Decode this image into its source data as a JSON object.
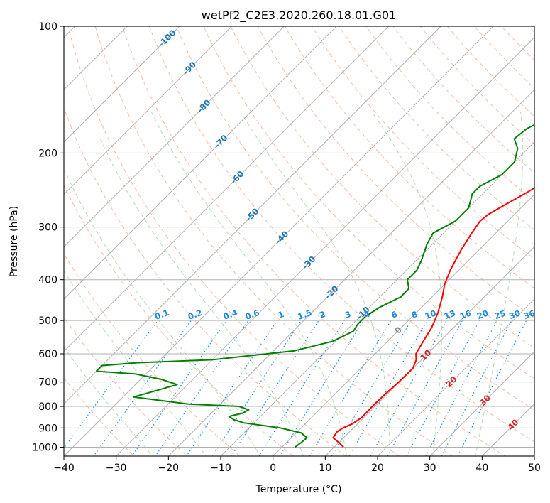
{
  "chart_data": {
    "type": "line",
    "title": "wetPf2_C2E3.2020.260.18.01.G01",
    "xlabel": "Temperature (°C)",
    "ylabel": "Pressure (hPa)",
    "xlim": [
      -40,
      50
    ],
    "ylim": [
      1050,
      100
    ],
    "y_scale": "log",
    "grid": true,
    "x_ticks": [
      -40,
      -30,
      -20,
      -10,
      0,
      10,
      20,
      30,
      40,
      50
    ],
    "y_ticks": [
      100,
      200,
      300,
      400,
      500,
      600,
      700,
      800,
      900,
      1000
    ],
    "colors": {
      "temperature": "#ff0000",
      "dewpoint": "#008000",
      "isotherm": "#aaaaaa",
      "dry_adiabat": "#f4a582",
      "moist_adiabat": "#a6d8a6",
      "mixing_ratio": "#1e88e5",
      "mixing_label": "#1e88e5",
      "isotherm_label": "#1f77b4",
      "warm_label": "#d62728"
    },
    "series": [
      {
        "key": "temperature",
        "points": [
          [
            11.8,
            1000
          ],
          [
            10.0,
            975
          ],
          [
            8.0,
            950
          ],
          [
            7.6,
            920
          ],
          [
            8.0,
            900
          ],
          [
            9.0,
            880
          ],
          [
            9.6,
            850
          ],
          [
            9.5,
            800
          ],
          [
            9.6,
            750
          ],
          [
            9.9,
            700
          ],
          [
            10.0,
            650
          ],
          [
            9.0,
            620
          ],
          [
            7.8,
            600
          ],
          [
            6.8,
            560
          ],
          [
            5.8,
            520
          ],
          [
            4.2,
            480
          ],
          [
            2.0,
            440
          ],
          [
            0.0,
            410
          ],
          [
            -1.6,
            380
          ],
          [
            -3.4,
            340
          ],
          [
            -4.6,
            310
          ],
          [
            -5.3,
            290
          ],
          [
            -5.0,
            280
          ],
          [
            -3.6,
            265
          ],
          [
            -2.0,
            250
          ],
          [
            0.0,
            230
          ],
          [
            2.4,
            210
          ],
          [
            5.4,
            195
          ],
          [
            8.5,
            185
          ],
          [
            10.2,
            175
          ],
          [
            10.5,
            165
          ],
          [
            11.2,
            155
          ],
          [
            12.5,
            145
          ],
          [
            15.0,
            135
          ],
          [
            17.6,
            125
          ],
          [
            19.5,
            115
          ],
          [
            21.5,
            108
          ],
          [
            24.0,
            100
          ]
        ]
      },
      {
        "key": "dewpoint",
        "points": [
          [
            2.5,
            1000
          ],
          [
            2.8,
            975
          ],
          [
            3.0,
            950
          ],
          [
            1.0,
            925
          ],
          [
            -4.0,
            900
          ],
          [
            -12.0,
            875
          ],
          [
            -14.5,
            860
          ],
          [
            -16.0,
            845
          ],
          [
            -14.0,
            830
          ],
          [
            -13.5,
            815
          ],
          [
            -16.0,
            800
          ],
          [
            -26.0,
            790
          ],
          [
            -38.0,
            760
          ],
          [
            -35.0,
            735
          ],
          [
            -32.0,
            710
          ],
          [
            -36.0,
            690
          ],
          [
            -42.0,
            670
          ],
          [
            -50.0,
            660
          ],
          [
            -50.0,
            640
          ],
          [
            -44.0,
            630
          ],
          [
            -30.0,
            620
          ],
          [
            -16.0,
            590
          ],
          [
            -10.5,
            560
          ],
          [
            -8.5,
            530
          ],
          [
            -9.0,
            510
          ],
          [
            -9.0,
            490
          ],
          [
            -8.0,
            465
          ],
          [
            -6.0,
            440
          ],
          [
            -6.0,
            420
          ],
          [
            -8.0,
            400
          ],
          [
            -8.0,
            380
          ],
          [
            -9.0,
            360
          ],
          [
            -11.0,
            330
          ],
          [
            -12.0,
            310
          ],
          [
            -10.0,
            290
          ],
          [
            -10.0,
            270
          ],
          [
            -12.0,
            250
          ],
          [
            -12.0,
            240
          ],
          [
            -10.0,
            225
          ],
          [
            -10.0,
            210
          ],
          [
            -12.0,
            195
          ],
          [
            -14.5,
            185
          ],
          [
            -14.0,
            175
          ],
          [
            -12.0,
            165
          ],
          [
            -8.0,
            150
          ],
          [
            -6.0,
            135
          ],
          [
            -3.5,
            120
          ],
          [
            0.0,
            108
          ],
          [
            2.5,
            100
          ]
        ]
      }
    ],
    "isotherm_labels": [
      {
        "t": -100,
        "p": 107,
        "text": "-100"
      },
      {
        "t": -90,
        "p": 126,
        "text": "-90"
      },
      {
        "t": -80,
        "p": 155,
        "text": "-80"
      },
      {
        "t": -70,
        "p": 188,
        "text": "-70"
      },
      {
        "t": -60,
        "p": 229,
        "text": "-60"
      },
      {
        "t": -50,
        "p": 281,
        "text": "-50"
      },
      {
        "t": -40,
        "p": 318,
        "text": "-40"
      },
      {
        "t": -30,
        "p": 365,
        "text": "-30"
      },
      {
        "t": -20,
        "p": 429,
        "text": "-20"
      },
      {
        "t": -10,
        "p": 481,
        "text": "-10"
      },
      {
        "t": 0,
        "p": 528,
        "text": "0"
      },
      {
        "t": 10,
        "p": 605,
        "text": "10"
      },
      {
        "t": 20,
        "p": 700,
        "text": "20"
      },
      {
        "t": 30,
        "p": 775,
        "text": "30"
      },
      {
        "t": 40,
        "p": 885,
        "text": "40"
      }
    ],
    "mixing_ratio_lines": [
      0.1,
      0.2,
      0.4,
      0.6,
      1,
      1.5,
      2,
      3,
      4,
      6,
      8,
      10,
      13,
      16,
      20,
      25,
      30,
      36
    ],
    "mixing_ratio_labels": [
      "0.1",
      "0.2",
      "0.4",
      "0.6",
      "1",
      "1.5",
      "2",
      "3",
      "4",
      "6",
      "8",
      "10",
      "13",
      "16",
      "20",
      "25",
      "30",
      "36"
    ]
  }
}
